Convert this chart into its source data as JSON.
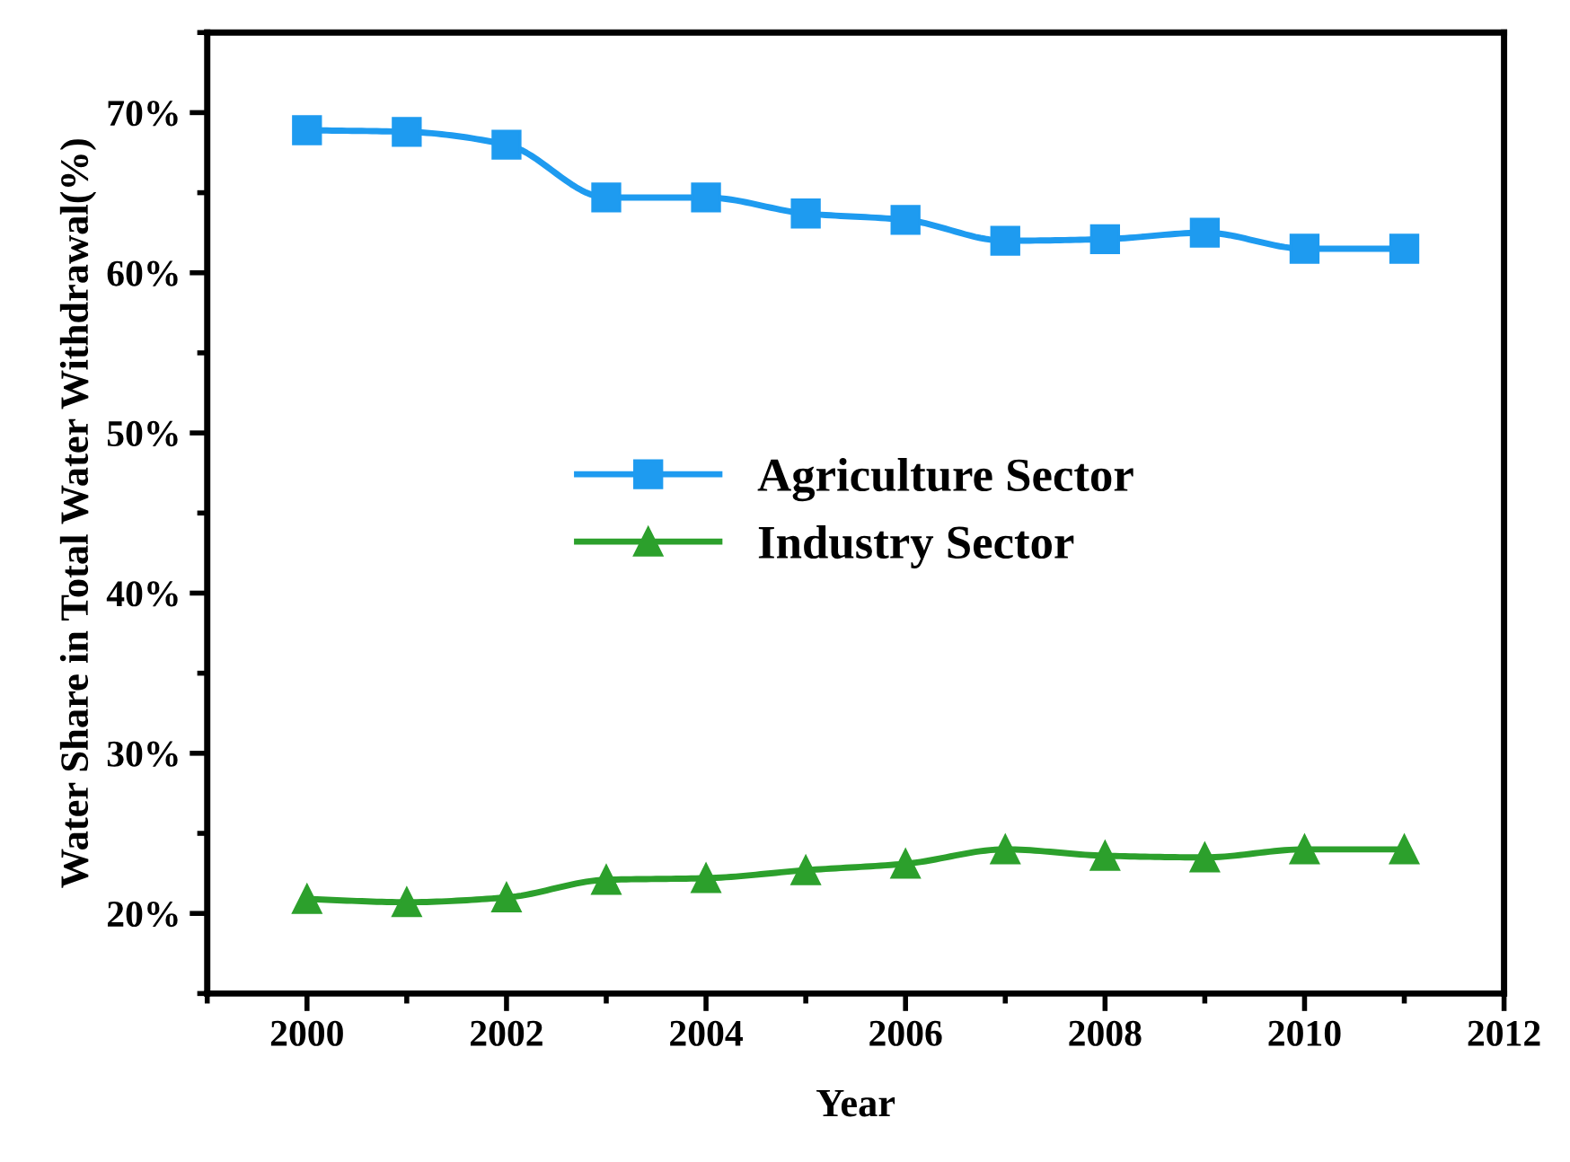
{
  "chart_data": {
    "type": "line",
    "xlabel": "Year",
    "ylabel": "Water Share in Total Water Withdrawal(%)",
    "x": [
      2000,
      2001,
      2002,
      2003,
      2004,
      2005,
      2006,
      2007,
      2008,
      2009,
      2010,
      2011
    ],
    "series": [
      {
        "name": "Agriculture Sector",
        "color": "#1e9bf0",
        "marker": "square",
        "values": [
          68.9,
          68.8,
          68.0,
          64.7,
          64.7,
          63.7,
          63.3,
          62.0,
          62.1,
          62.5,
          61.5,
          61.5
        ]
      },
      {
        "name": "Industry Sector",
        "color": "#2ca02c",
        "marker": "triangle",
        "values": [
          20.9,
          20.7,
          21.0,
          22.1,
          22.2,
          22.7,
          23.1,
          24.0,
          23.6,
          23.5,
          24.0,
          24.0
        ]
      }
    ],
    "xlim": [
      1999,
      2012
    ],
    "xticks": [
      2000,
      2002,
      2004,
      2006,
      2008,
      2010,
      2012
    ],
    "ylim": [
      15,
      75
    ],
    "yticks": [
      {
        "value": 20,
        "label": "20%"
      },
      {
        "value": 30,
        "label": "30%"
      },
      {
        "value": 40,
        "label": "40%"
      },
      {
        "value": 50,
        "label": "50%"
      },
      {
        "value": 60,
        "label": "60%"
      },
      {
        "value": 70,
        "label": "70%"
      }
    ],
    "grid": false,
    "legend": "center",
    "line_style": "solid"
  }
}
